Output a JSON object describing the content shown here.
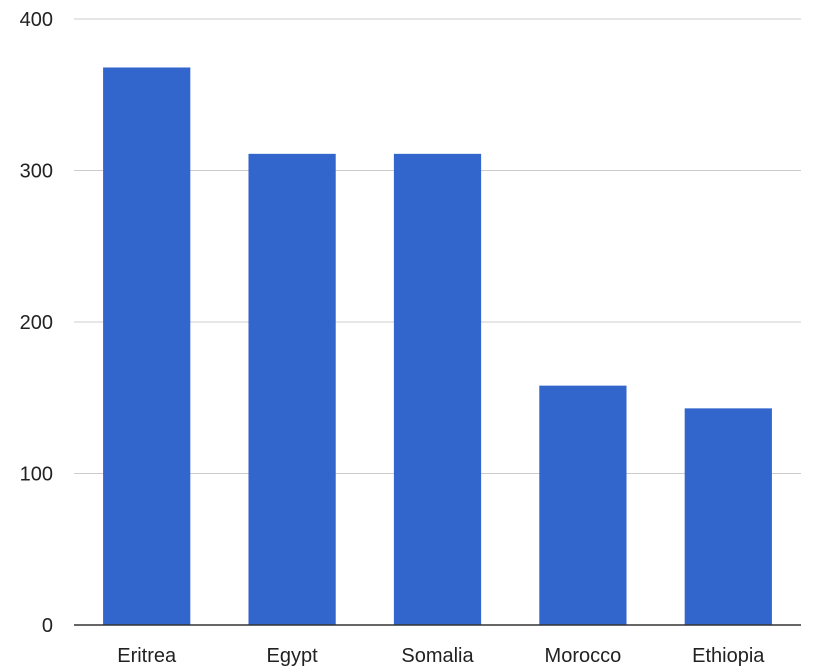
{
  "chart_data": {
    "type": "bar",
    "title": "",
    "xlabel": "",
    "ylabel": "",
    "categories": [
      "Eritrea",
      "Egypt",
      "Somalia",
      "Morocco",
      "Ethiopia"
    ],
    "values": [
      368,
      311,
      311,
      158,
      143
    ],
    "ylim": [
      0,
      400
    ],
    "yticks": [
      "0",
      "100",
      "200",
      "300",
      "400"
    ],
    "grid": true,
    "legend": "none",
    "bar_color": "#3366cc"
  }
}
